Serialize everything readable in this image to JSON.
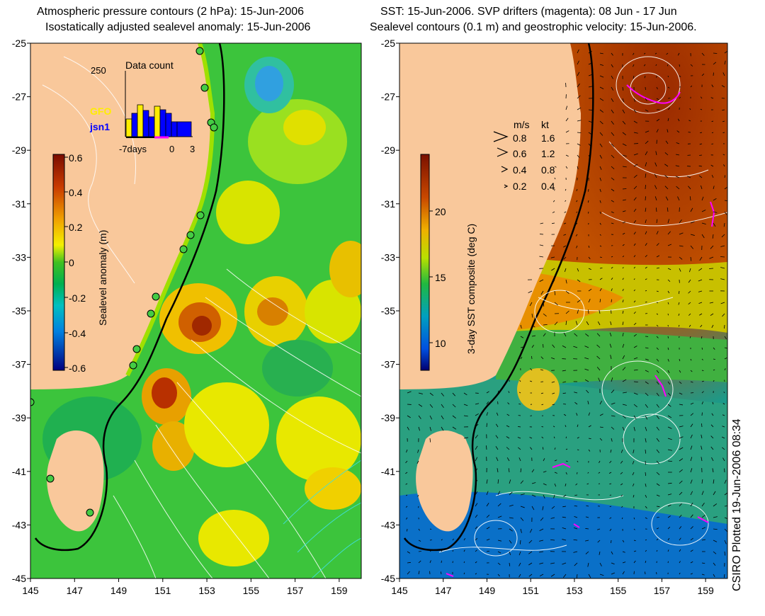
{
  "left_panel": {
    "title_line1": "Atmospheric pressure contours (2 hPa): 15-Jun-2006",
    "title_line2": "Isostatically adjusted sealevel anomaly: 15-Jun-2006",
    "colorbar": {
      "label": "Sealevel anomaly (m)",
      "ticks": [
        "0.6",
        "0.4",
        "0.2",
        "0",
        "-0.2",
        "-0.4",
        "-0.6"
      ]
    },
    "inset": {
      "title": "Data count",
      "ymax_label": "250",
      "xticks": [
        "-7days",
        "0",
        "3"
      ],
      "legend": [
        {
          "name": "GFO",
          "color": "#ffee00"
        },
        {
          "name": "jsn1",
          "color": "#0000ff"
        }
      ]
    }
  },
  "right_panel": {
    "title_line1": "SST: 15-Jun-2006. SVP drifters (magenta): 08 Jun - 17 Jun",
    "title_line2": "Sealevel contours (0.1 m) and geostrophic velocity: 15-Jun-2006.",
    "colorbar": {
      "label": "3-day SST composite (deg C)",
      "ticks": [
        "20",
        "15",
        "10"
      ]
    },
    "velocity_legend": {
      "headers": [
        "m/s",
        "kt"
      ],
      "rows": [
        {
          "ms": "0.8",
          "kt": "1.6"
        },
        {
          "ms": "0.6",
          "kt": "1.2"
        },
        {
          "ms": "0.4",
          "kt": "0.8"
        },
        {
          "ms": "0.2",
          "kt": "0.4"
        }
      ]
    }
  },
  "axes": {
    "lat_ticks": [
      "-25",
      "-27",
      "-29",
      "-31",
      "-33",
      "-35",
      "-37",
      "-39",
      "-41",
      "-43",
      "-45"
    ],
    "lon_ticks": [
      "145",
      "147",
      "149",
      "151",
      "153",
      "155",
      "157",
      "159"
    ]
  },
  "credit": "CSIRO Plotted 19-Jun-2006 08:34",
  "colors": {
    "land": "#f9c89b",
    "drifter": "#ff00ff",
    "contour": "#ffffff"
  }
}
